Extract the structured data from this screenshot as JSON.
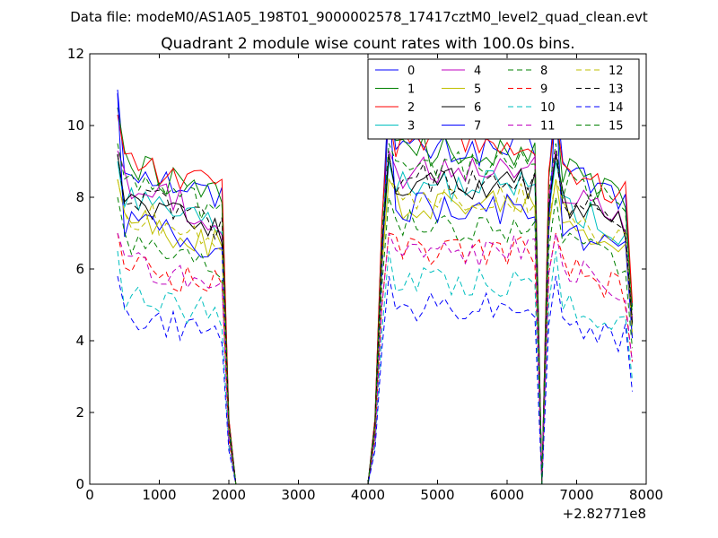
{
  "figure": {
    "suptitle": "Data file: modeM0/AS1A05_198T01_9000002578_17417cztM0_level2_quad_clean.evt",
    "background": "#ffffff"
  },
  "chart_data": {
    "type": "line",
    "title": "Quadrant 2 module wise count rates with 100.0s bins.",
    "xlabel": "",
    "ylabel": "",
    "x_offset_label": "+2.82771e8",
    "xlim": [
      0,
      8000
    ],
    "ylim": [
      0,
      12
    ],
    "x_ticks": [
      0,
      1000,
      2000,
      3000,
      4000,
      5000,
      6000,
      7000,
      8000
    ],
    "y_ticks": [
      0,
      2,
      4,
      6,
      8,
      10,
      12
    ],
    "x_tick_labels": [
      "0",
      "1000",
      "2000",
      "3000",
      "4000",
      "5000",
      "6000",
      "7000",
      "8000"
    ],
    "y_tick_labels": [
      "0",
      "2",
      "4",
      "6",
      "8",
      "10",
      "12"
    ],
    "grid": false,
    "legend": {
      "placement": "top-right",
      "columns": 4
    },
    "x": [
      400,
      500,
      600,
      700,
      800,
      900,
      1000,
      1100,
      1200,
      1300,
      1400,
      1500,
      1600,
      1700,
      1800,
      1900,
      2000,
      2100,
      2200,
      2300,
      2400,
      2500,
      2600,
      2700,
      2800,
      2900,
      3000,
      3100,
      3200,
      3300,
      3400,
      3500,
      3600,
      3700,
      3800,
      3900,
      4000,
      4100,
      4200,
      4300,
      4400,
      4500,
      4600,
      4700,
      4800,
      4900,
      5000,
      5100,
      5200,
      5300,
      5400,
      5500,
      5600,
      5700,
      5800,
      5900,
      6000,
      6100,
      6200,
      6300,
      6400,
      6500,
      6600,
      6700,
      6800,
      6900,
      7000,
      7100,
      7200,
      7300,
      7400,
      7500,
      7600,
      7700,
      7800
    ],
    "series": [
      {
        "name": "0",
        "color": "#0000ff",
        "dash": "solid",
        "level": 9.0,
        "peak": 11.0
      },
      {
        "name": "1",
        "color": "#008000",
        "dash": "solid",
        "level": 9.0,
        "peak": 10.5
      },
      {
        "name": "2",
        "color": "#ff0000",
        "dash": "solid",
        "level": 9.2,
        "peak": 10.3
      },
      {
        "name": "3",
        "color": "#00bfbf",
        "dash": "solid",
        "level": 8.0,
        "peak": 9.0
      },
      {
        "name": "4",
        "color": "#bf00bf",
        "dash": "solid",
        "level": 8.4,
        "peak": 9.3
      },
      {
        "name": "5",
        "color": "#bfbf00",
        "dash": "solid",
        "level": 7.5,
        "peak": 8.5
      },
      {
        "name": "6",
        "color": "#000000",
        "dash": "solid",
        "level": 8.1,
        "peak": 9.2
      },
      {
        "name": "7",
        "color": "#0000ff",
        "dash": "solid",
        "level": 7.4,
        "peak": 10.9
      },
      {
        "name": "8",
        "color": "#008000",
        "dash": "dashed",
        "level": 6.9,
        "peak": 8.0
      },
      {
        "name": "9",
        "color": "#ff0000",
        "dash": "dashed",
        "level": 6.2,
        "peak": 7.0
      },
      {
        "name": "10",
        "color": "#00bfbf",
        "dash": "dashed",
        "level": 5.3,
        "peak": 6.5
      },
      {
        "name": "11",
        "color": "#bf00bf",
        "dash": "dashed",
        "level": 6.2,
        "peak": 7.0
      },
      {
        "name": "12",
        "color": "#bfbf00",
        "dash": "dashed",
        "level": 7.7,
        "peak": 8.5
      },
      {
        "name": "13",
        "color": "#000000",
        "dash": "dashed",
        "level": 8.2,
        "peak": 9.2
      },
      {
        "name": "14",
        "color": "#0000ff",
        "dash": "dashed",
        "level": 4.7,
        "peak": 5.8
      },
      {
        "name": "15",
        "color": "#008000",
        "dash": "dashed",
        "level": 8.6,
        "peak": 9.5
      }
    ]
  }
}
